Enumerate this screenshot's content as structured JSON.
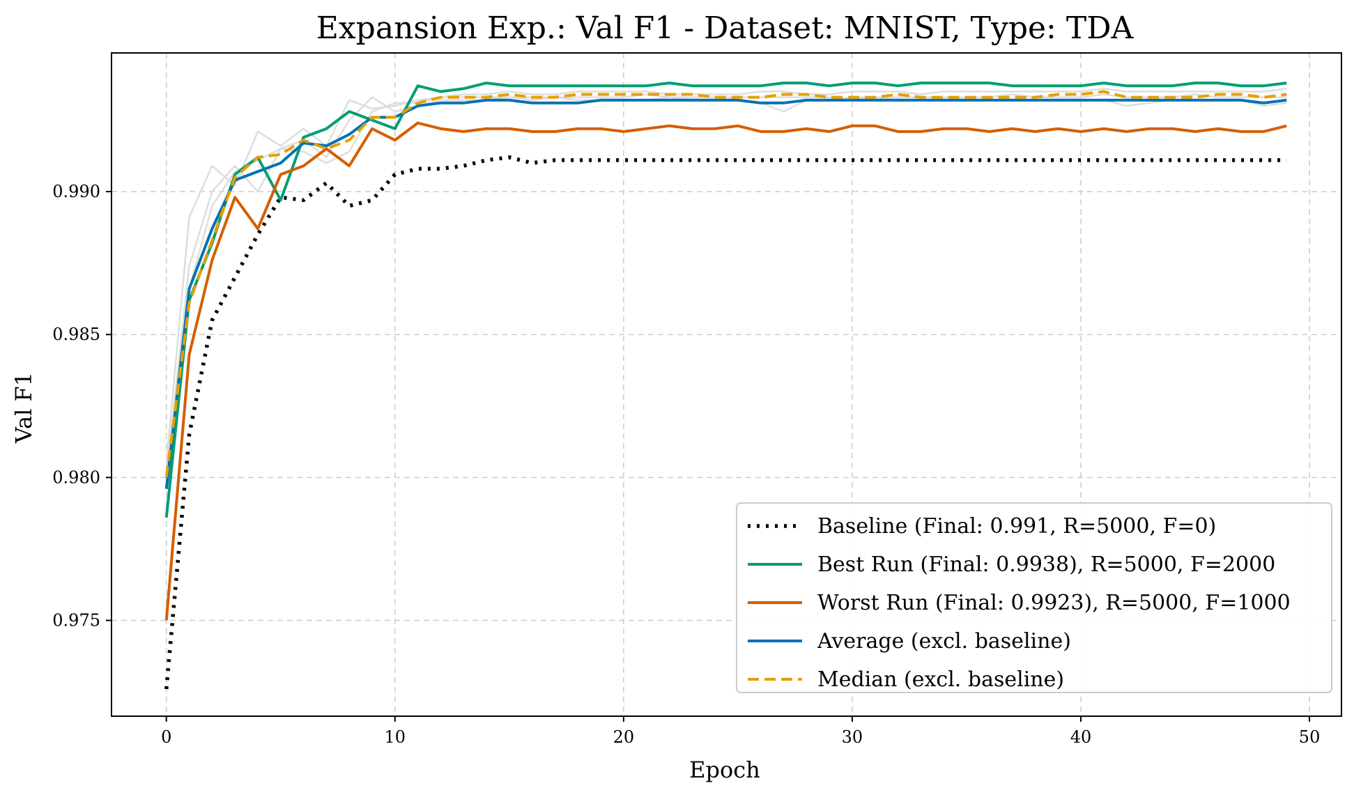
{
  "chart_data": {
    "type": "line",
    "title": "Expansion Exp.: Val F1 - Dataset: MNIST, Type: TDA",
    "xlabel": "Epoch",
    "ylabel": "Val F1",
    "xlim": [
      -2.4,
      51.4
    ],
    "ylim": [
      0.97165,
      0.99485
    ],
    "xticks": [
      0,
      10,
      20,
      30,
      40,
      50
    ],
    "xtick_labels": [
      "0",
      "10",
      "20",
      "30",
      "40",
      "50"
    ],
    "yticks": [
      0.975,
      0.98,
      0.985,
      0.99
    ],
    "ytick_labels": [
      "0.975",
      "0.980",
      "0.985",
      "0.990"
    ],
    "grid": true,
    "legend_position": "lower-right",
    "x": [
      0,
      1,
      2,
      3,
      4,
      5,
      6,
      7,
      8,
      9,
      10,
      11,
      12,
      13,
      14,
      15,
      16,
      17,
      18,
      19,
      20,
      21,
      22,
      23,
      24,
      25,
      26,
      27,
      28,
      29,
      30,
      31,
      32,
      33,
      34,
      35,
      36,
      37,
      38,
      39,
      40,
      41,
      42,
      43,
      44,
      45,
      46,
      47,
      48,
      49
    ],
    "background_runs": [
      {
        "color": "#dddddd",
        "values": [
          0.9805,
          0.9891,
          0.9909,
          0.9902,
          0.9921,
          0.9916,
          0.9922,
          0.9916,
          0.9932,
          0.9929,
          0.993,
          0.9932,
          0.9933,
          0.9934,
          0.9934,
          0.9935,
          0.9934,
          0.9934,
          0.9935,
          0.9935,
          0.9935,
          0.9935,
          0.9934,
          0.9934,
          0.9934,
          0.9934,
          0.9935,
          0.9935,
          0.9934,
          0.9934,
          0.9935,
          0.9935,
          0.9935,
          0.9934,
          0.9935,
          0.9935,
          0.9935,
          0.9935,
          0.9935,
          0.9935,
          0.9935,
          0.9936,
          0.9935,
          0.9935,
          0.9935,
          0.9935,
          0.9935,
          0.9935,
          0.9935,
          0.9936
        ]
      },
      {
        "color": "#dddddd",
        "values": [
          0.9801,
          0.9874,
          0.99,
          0.9909,
          0.99,
          0.9915,
          0.9918,
          0.9912,
          0.9925,
          0.9933,
          0.9928,
          0.993,
          0.9932,
          0.9932,
          0.9932,
          0.9933,
          0.9932,
          0.9933,
          0.9932,
          0.9932,
          0.9932,
          0.9932,
          0.9933,
          0.9932,
          0.9932,
          0.9932,
          0.9931,
          0.9928,
          0.9932,
          0.9932,
          0.9933,
          0.9933,
          0.9932,
          0.9932,
          0.9932,
          0.9932,
          0.9932,
          0.9932,
          0.9932,
          0.9932,
          0.9932,
          0.9932,
          0.993,
          0.9931,
          0.9932,
          0.9932,
          0.9932,
          0.9932,
          0.993,
          0.9931
        ]
      },
      {
        "color": "#dddddd",
        "values": [
          0.98,
          0.9866,
          0.9895,
          0.9907,
          0.9911,
          0.9915,
          0.9914,
          0.991,
          0.9914,
          0.9928,
          0.9931,
          0.9931,
          0.9933,
          0.9933,
          0.9933,
          0.9933,
          0.9933,
          0.9933,
          0.9933,
          0.9933,
          0.9933,
          0.9934,
          0.9933,
          0.9933,
          0.9933,
          0.9933,
          0.9933,
          0.9933,
          0.9933,
          0.9933,
          0.9932,
          0.9933,
          0.9933,
          0.9933,
          0.9933,
          0.9933,
          0.9933,
          0.9934,
          0.9933,
          0.9933,
          0.9933,
          0.9934,
          0.9933,
          0.9933,
          0.9933,
          0.9934,
          0.9933,
          0.9933,
          0.9933,
          0.9933
        ]
      }
    ],
    "series": [
      {
        "name": "Baseline (Final: 0.991, R=5000, F=0)",
        "color": "#000000",
        "style": "dotted",
        "values": [
          0.9726,
          0.9815,
          0.9855,
          0.987,
          0.9885,
          0.9898,
          0.9897,
          0.9903,
          0.9895,
          0.9897,
          0.9906,
          0.9908,
          0.9908,
          0.9909,
          0.9911,
          0.9912,
          0.991,
          0.9911,
          0.9911,
          0.9911,
          0.9911,
          0.9911,
          0.9911,
          0.9911,
          0.9911,
          0.9911,
          0.9911,
          0.9911,
          0.9911,
          0.9911,
          0.9911,
          0.9911,
          0.9911,
          0.9911,
          0.9911,
          0.9911,
          0.9911,
          0.9911,
          0.9911,
          0.9911,
          0.9911,
          0.9911,
          0.9911,
          0.9911,
          0.9911,
          0.9911,
          0.9911,
          0.9911,
          0.9911,
          0.9911
        ]
      },
      {
        "name": "Best Run (Final: 0.9938), R=5000, F=2000",
        "color": "#009e73",
        "style": "solid",
        "values": [
          0.9786,
          0.9862,
          0.9882,
          0.9906,
          0.9912,
          0.9897,
          0.9919,
          0.9922,
          0.9928,
          0.9925,
          0.9922,
          0.9937,
          0.9935,
          0.9936,
          0.9938,
          0.9937,
          0.9937,
          0.9937,
          0.9937,
          0.9937,
          0.9937,
          0.9937,
          0.9938,
          0.9937,
          0.9937,
          0.9937,
          0.9937,
          0.9938,
          0.9938,
          0.9937,
          0.9938,
          0.9938,
          0.9937,
          0.9938,
          0.9938,
          0.9938,
          0.9938,
          0.9937,
          0.9937,
          0.9937,
          0.9937,
          0.9938,
          0.9937,
          0.9937,
          0.9937,
          0.9938,
          0.9938,
          0.9937,
          0.9937,
          0.9938
        ]
      },
      {
        "name": "Worst Run (Final: 0.9923), R=5000, F=1000",
        "color": "#d55e00",
        "style": "solid",
        "values": [
          0.975,
          0.9843,
          0.9876,
          0.9898,
          0.9887,
          0.9906,
          0.9909,
          0.9915,
          0.9909,
          0.9922,
          0.9918,
          0.9924,
          0.9922,
          0.9921,
          0.9922,
          0.9922,
          0.9921,
          0.9921,
          0.9922,
          0.9922,
          0.9921,
          0.9922,
          0.9923,
          0.9922,
          0.9922,
          0.9923,
          0.9921,
          0.9921,
          0.9922,
          0.9921,
          0.9923,
          0.9923,
          0.9921,
          0.9921,
          0.9922,
          0.9922,
          0.9921,
          0.9922,
          0.9921,
          0.9922,
          0.9921,
          0.9922,
          0.9921,
          0.9922,
          0.9922,
          0.9921,
          0.9922,
          0.9921,
          0.9921,
          0.9923
        ]
      },
      {
        "name": "Average (excl. baseline)",
        "color": "#0072b2",
        "style": "solid",
        "values": [
          0.9796,
          0.9866,
          0.9887,
          0.9904,
          0.9907,
          0.991,
          0.9917,
          0.9916,
          0.992,
          0.9926,
          0.9926,
          0.993,
          0.9931,
          0.9931,
          0.9932,
          0.9932,
          0.9931,
          0.9931,
          0.9931,
          0.9932,
          0.9932,
          0.9932,
          0.9932,
          0.9932,
          0.9932,
          0.9932,
          0.9931,
          0.9931,
          0.9932,
          0.9932,
          0.9932,
          0.9932,
          0.9932,
          0.9932,
          0.9932,
          0.9932,
          0.9932,
          0.9932,
          0.9932,
          0.9932,
          0.9932,
          0.9932,
          0.9932,
          0.9932,
          0.9932,
          0.9932,
          0.9932,
          0.9932,
          0.9931,
          0.9932
        ]
      },
      {
        "name": "Median (excl. baseline)",
        "color": "#e69f00",
        "style": "dashed",
        "values": [
          0.98,
          0.9861,
          0.9883,
          0.9905,
          0.9912,
          0.9913,
          0.9918,
          0.9915,
          0.9918,
          0.9926,
          0.9926,
          0.9931,
          0.9933,
          0.9933,
          0.9933,
          0.9934,
          0.9933,
          0.9933,
          0.9934,
          0.9934,
          0.9934,
          0.9934,
          0.9934,
          0.9934,
          0.9933,
          0.9933,
          0.9933,
          0.9934,
          0.9934,
          0.9933,
          0.9933,
          0.9933,
          0.9934,
          0.9933,
          0.9933,
          0.9933,
          0.9933,
          0.9933,
          0.9933,
          0.9934,
          0.9934,
          0.9935,
          0.9933,
          0.9933,
          0.9933,
          0.9933,
          0.9934,
          0.9934,
          0.9933,
          0.9934
        ]
      }
    ]
  }
}
